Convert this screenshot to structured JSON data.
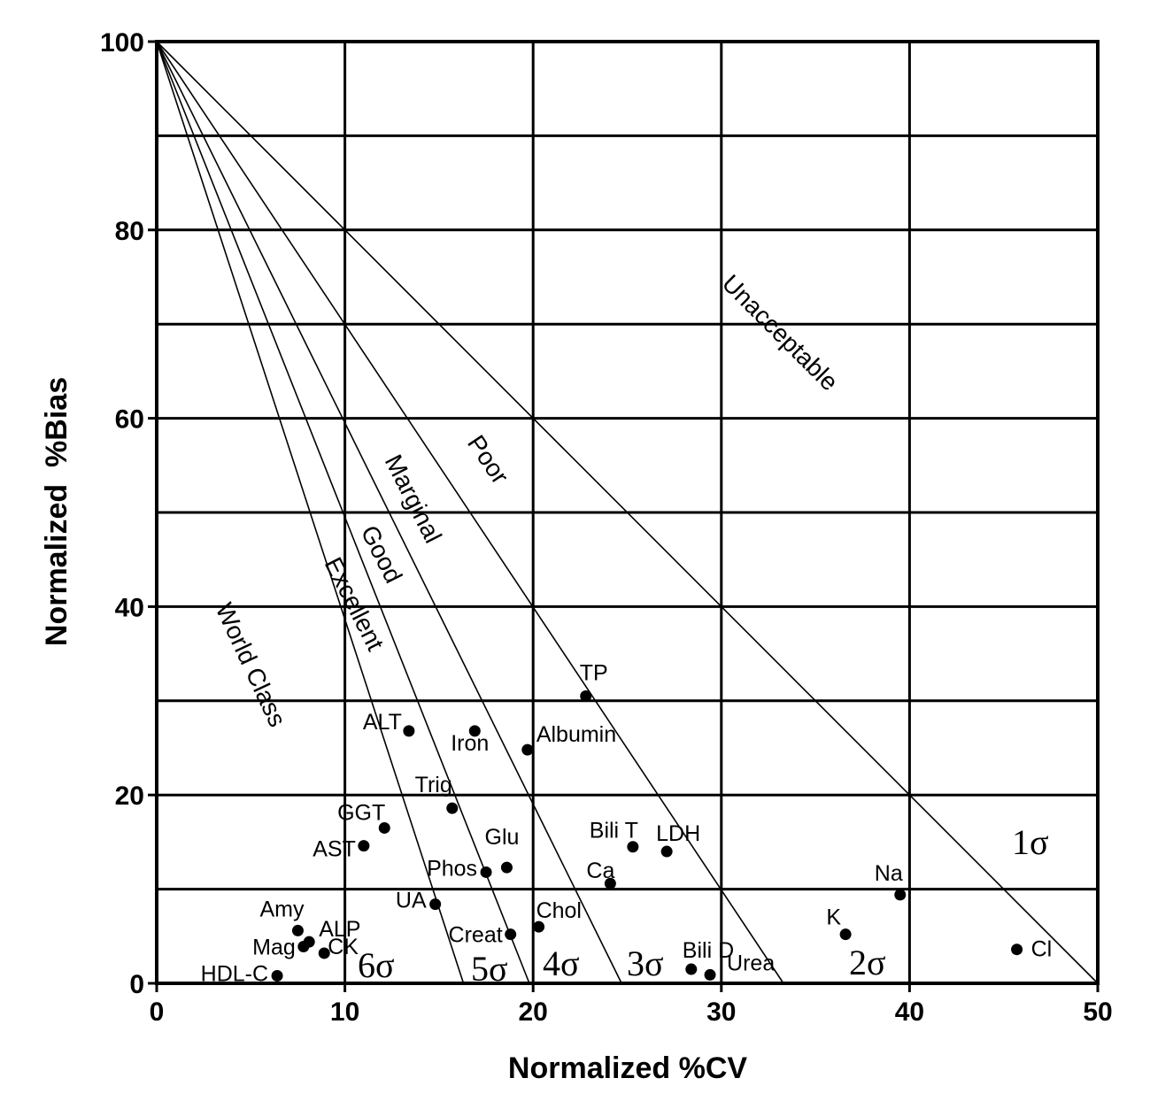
{
  "chart_data": {
    "type": "scatter",
    "title": "",
    "xlabel": "Normalized %CV",
    "ylabel": "Normalized  %Bias",
    "xlim": [
      0,
      50
    ],
    "ylim": [
      0,
      100
    ],
    "x_ticks": [
      "0",
      "10",
      "20",
      "30",
      "40",
      "50"
    ],
    "y_ticks": [
      "0",
      "20",
      "40",
      "60",
      "80",
      "100"
    ],
    "grid": {
      "x_step": 10,
      "y_step": 10
    },
    "sigma_lines": [
      {
        "sigma": 1,
        "label": "1σ",
        "x_intercept": 50
      },
      {
        "sigma": 2,
        "label": "2σ",
        "x_intercept": 33.3
      },
      {
        "sigma": 3,
        "label": "3σ",
        "x_intercept": 24.7
      },
      {
        "sigma": 4,
        "label": "4σ",
        "x_intercept": 19.8
      },
      {
        "sigma": 5,
        "label": "5σ",
        "x_intercept": 16.3
      },
      {
        "sigma": 6,
        "label": "6σ"
      }
    ],
    "regions": [
      "Unacceptable",
      "Poor",
      "Marginal",
      "Good",
      "Excellent",
      "World Class"
    ],
    "points": [
      {
        "name": "TP",
        "x": 22.8,
        "y": 30.5
      },
      {
        "name": "ALT",
        "x": 13.4,
        "y": 26.8
      },
      {
        "name": "Iron",
        "x": 16.9,
        "y": 26.8
      },
      {
        "name": "Albumin",
        "x": 19.7,
        "y": 24.8
      },
      {
        "name": "Trig",
        "x": 15.7,
        "y": 18.6
      },
      {
        "name": "GGT",
        "x": 12.1,
        "y": 16.5
      },
      {
        "name": "AST",
        "x": 11.0,
        "y": 14.6
      },
      {
        "name": "Glu",
        "x": 18.6,
        "y": 12.3
      },
      {
        "name": "Phos",
        "x": 17.5,
        "y": 11.8
      },
      {
        "name": "Bili T",
        "x": 25.3,
        "y": 14.5
      },
      {
        "name": "LDH",
        "x": 27.1,
        "y": 14.0
      },
      {
        "name": "Ca",
        "x": 24.1,
        "y": 10.6
      },
      {
        "name": "UA",
        "x": 14.8,
        "y": 8.4
      },
      {
        "name": "Chol",
        "x": 20.3,
        "y": 6.0
      },
      {
        "name": "Creat",
        "x": 18.8,
        "y": 5.2
      },
      {
        "name": "Amy",
        "x": 7.5,
        "y": 5.6
      },
      {
        "name": "ALP",
        "x": 8.1,
        "y": 4.4
      },
      {
        "name": "Mag",
        "x": 7.8,
        "y": 3.9
      },
      {
        "name": "CK",
        "x": 8.9,
        "y": 3.2
      },
      {
        "name": "HDL-C",
        "x": 6.4,
        "y": 0.8
      },
      {
        "name": "Bili D",
        "x": 28.4,
        "y": 1.5
      },
      {
        "name": "Urea",
        "x": 29.4,
        "y": 0.9
      },
      {
        "name": "Na",
        "x": 39.5,
        "y": 9.4
      },
      {
        "name": "K",
        "x": 36.6,
        "y": 5.2
      },
      {
        "name": "Cl",
        "x": 45.7,
        "y": 3.6
      }
    ]
  }
}
